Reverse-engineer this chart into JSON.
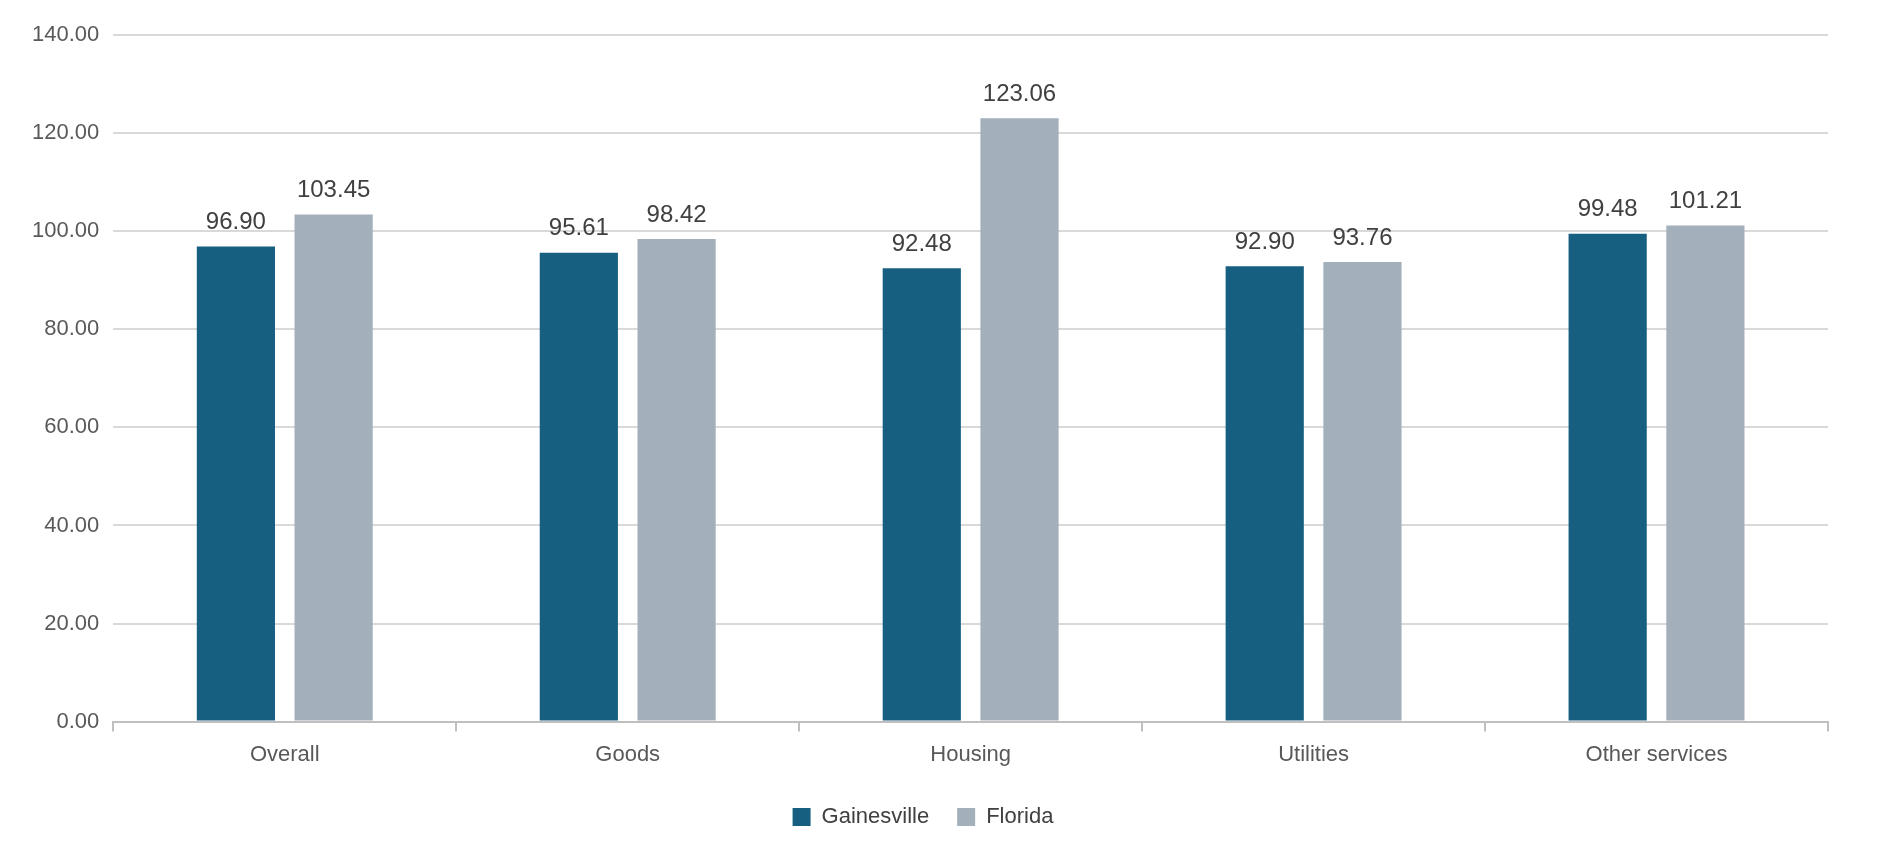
{
  "chart_data": {
    "type": "bar",
    "categories": [
      "Overall",
      "Goods",
      "Housing",
      "Utilities",
      "Other services"
    ],
    "series": [
      {
        "name": "Gainesville",
        "color": "#175f80",
        "values": [
          96.9,
          95.61,
          92.48,
          92.9,
          99.48
        ],
        "value_labels": [
          "96.90",
          "95.61",
          "92.48",
          "92.90",
          "99.48"
        ]
      },
      {
        "name": "Florida",
        "color": "#a3afba",
        "values": [
          103.45,
          98.42,
          123.06,
          93.76,
          101.21
        ],
        "value_labels": [
          "103.45",
          "98.42",
          "123.06",
          "93.76",
          "101.21"
        ]
      }
    ],
    "ylim": [
      0,
      140
    ],
    "yticks": [
      {
        "value": 0,
        "label": "0.00"
      },
      {
        "value": 20,
        "label": "20.00"
      },
      {
        "value": 40,
        "label": "40.00"
      },
      {
        "value": 60,
        "label": "60.00"
      },
      {
        "value": 80,
        "label": "80.00"
      },
      {
        "value": 100,
        "label": "100.00"
      },
      {
        "value": 120,
        "label": "120.00"
      },
      {
        "value": 140,
        "label": "140.00"
      }
    ],
    "grid": "y",
    "legend": "bottom"
  }
}
